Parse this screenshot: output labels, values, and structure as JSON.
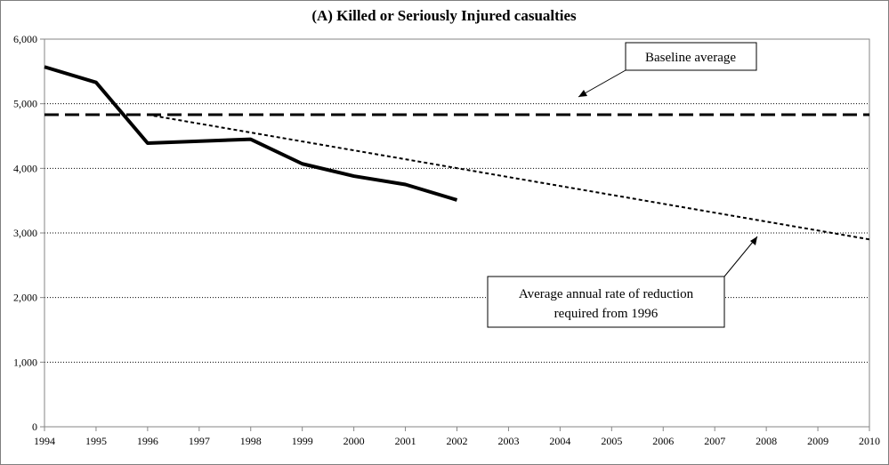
{
  "chart_data": {
    "type": "line",
    "title": "(A) Killed or Seriously Injured casualties",
    "xlabel": "",
    "ylabel": "",
    "x_categories": [
      "1994",
      "1995",
      "1996",
      "1997",
      "1998",
      "1999",
      "2000",
      "2001",
      "2002",
      "2003",
      "2004",
      "2005",
      "2006",
      "2007",
      "2008",
      "2009",
      "2010"
    ],
    "ylim": [
      0,
      6000
    ],
    "y_ticks": [
      0,
      1000,
      2000,
      3000,
      4000,
      5000,
      6000
    ],
    "y_tick_labels": [
      "0",
      "1,000",
      "2,000",
      "3,000",
      "4,000",
      "5,000",
      "6,000"
    ],
    "grid": "horizontal-dotted",
    "series": [
      {
        "style": "solid-thick",
        "points": [
          {
            "x": "1994",
            "y": 5570
          },
          {
            "x": "1995",
            "y": 5330
          },
          {
            "x": "1996",
            "y": 4390
          },
          {
            "x": "1998",
            "y": 4450
          },
          {
            "x": "1999",
            "y": 4070
          },
          {
            "x": "2000",
            "y": 3880
          },
          {
            "x": "2001",
            "y": 3750
          },
          {
            "x": "2002",
            "y": 3510
          }
        ]
      },
      {
        "style": "long-dash-horizontal",
        "points": [
          {
            "x": "1994",
            "y": 4830
          },
          {
            "x": "2010",
            "y": 4830
          }
        ]
      },
      {
        "style": "short-dash",
        "points": [
          {
            "x": "1996",
            "y": 4830
          },
          {
            "x": "2010",
            "y": 2900
          }
        ]
      }
    ],
    "annotations": [
      {
        "text": "Baseline average",
        "points_to": "baseline dashed line"
      },
      {
        "lines": [
          "Average annual rate of reduction",
          "required from 1996"
        ],
        "points_to": "reduction trend line"
      }
    ]
  }
}
